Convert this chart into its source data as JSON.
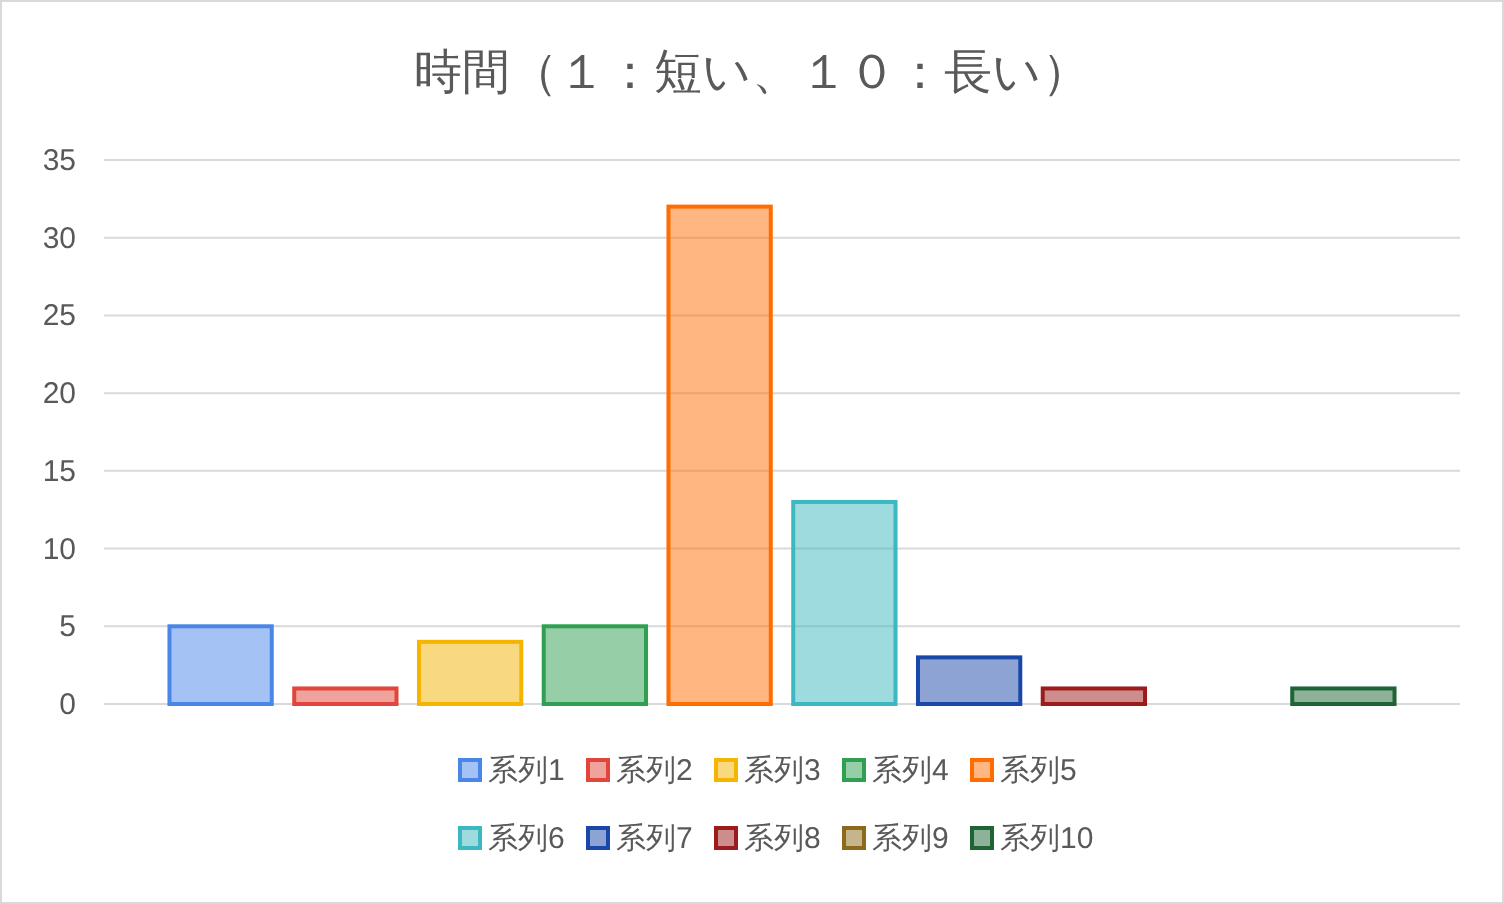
{
  "chart_data": {
    "type": "bar",
    "title": "時間（１：短い、１０：長い）",
    "categories": [
      null
    ],
    "series": [
      {
        "name": "系列1",
        "color": "#4a86e8",
        "values": [
          5
        ]
      },
      {
        "name": "系列2",
        "color": "#e2453c",
        "values": [
          1
        ]
      },
      {
        "name": "系列3",
        "color": "#f4b400",
        "values": [
          4
        ]
      },
      {
        "name": "系列4",
        "color": "#2ea04f",
        "values": [
          5
        ]
      },
      {
        "name": "系列5",
        "color": "#ff6d01",
        "values": [
          32
        ]
      },
      {
        "name": "系列6",
        "color": "#3cb8c0",
        "values": [
          13
        ]
      },
      {
        "name": "系列7",
        "color": "#1a48a8",
        "values": [
          3
        ]
      },
      {
        "name": "系列8",
        "color": "#9c1c1c",
        "values": [
          1
        ]
      },
      {
        "name": "系列9",
        "color": "#8c6a1a",
        "values": [
          0
        ]
      },
      {
        "name": "系列10",
        "color": "#1e6434",
        "values": [
          1
        ]
      }
    ],
    "ylim": [
      0,
      35
    ],
    "yticks": [
      0,
      5,
      10,
      15,
      20,
      25,
      30,
      35
    ],
    "grid": "y",
    "legend": "bottom"
  }
}
